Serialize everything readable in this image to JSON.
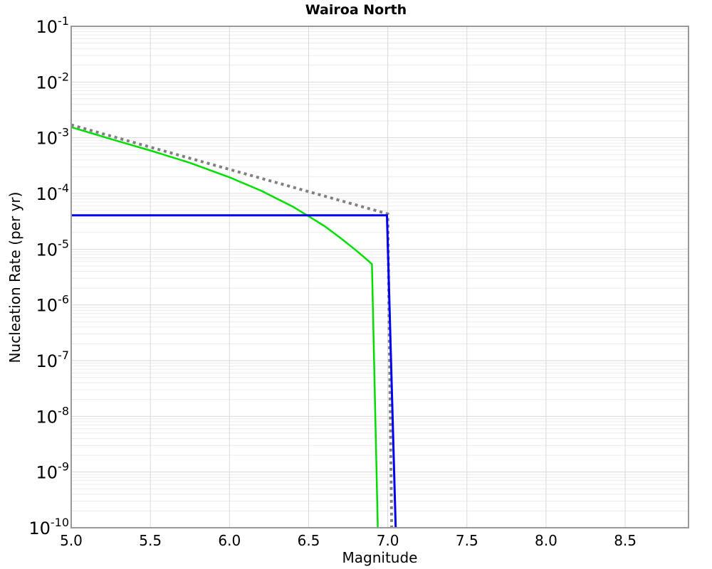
{
  "chart_data": {
    "type": "line",
    "title": "Wairoa North",
    "xlabel": "Magnitude",
    "ylabel": "Nucleation Rate (per yr)",
    "x_range": [
      5.0,
      8.9
    ],
    "y_scale": "log10",
    "y_range_exponents": [
      -10,
      -1
    ],
    "x_ticks": [
      5.0,
      5.5,
      6.0,
      6.5,
      7.0,
      7.5,
      8.0,
      8.5
    ],
    "x_tick_labels": [
      "5.0",
      "5.5",
      "6.0",
      "6.5",
      "7.0",
      "7.5",
      "8.0",
      "8.5"
    ],
    "y_tick_exponents": [
      -1,
      -2,
      -3,
      -4,
      -5,
      -6,
      -7,
      -8,
      -9,
      -10
    ],
    "y_tick_base": "10",
    "grid": {
      "major": true,
      "minor_log_y": true,
      "legend": "none"
    },
    "colors": {
      "minor_grid": "#ececec",
      "major_grid": "#d9d9d9",
      "border": "#999999",
      "background": "#ffffff",
      "text": "#000000"
    },
    "series": [
      {
        "name": "tapered-gr-green",
        "color": "#00dd00",
        "style": "solid",
        "width": 2.5,
        "points": [
          [
            5.0,
            0.00155
          ],
          [
            5.25,
            0.00095
          ],
          [
            5.5,
            0.00059
          ],
          [
            5.75,
            0.000355
          ],
          [
            6.0,
            0.000195
          ],
          [
            6.2,
            0.000112
          ],
          [
            6.4,
            5.8e-05
          ],
          [
            6.5,
            3.9e-05
          ],
          [
            6.6,
            2.6e-05
          ],
          [
            6.7,
            1.6e-05
          ],
          [
            6.8,
            9.5e-06
          ],
          [
            6.85,
            7.2e-06
          ],
          [
            6.9,
            5.4e-06
          ],
          [
            6.937,
            1e-10
          ]
        ]
      },
      {
        "name": "gr-dotted-gray",
        "color": "#808080",
        "style": "dotted",
        "width": 4,
        "points": [
          [
            5.0,
            0.0017
          ],
          [
            7.0,
            4.3e-05
          ],
          [
            7.025,
            1e-10
          ]
        ]
      },
      {
        "name": "characteristic-blue",
        "color": "#0000ee",
        "style": "solid",
        "width": 3,
        "points": [
          [
            5.0,
            4.05e-05
          ],
          [
            6.995,
            4.05e-05
          ],
          [
            7.05,
            1e-10
          ]
        ]
      }
    ]
  }
}
